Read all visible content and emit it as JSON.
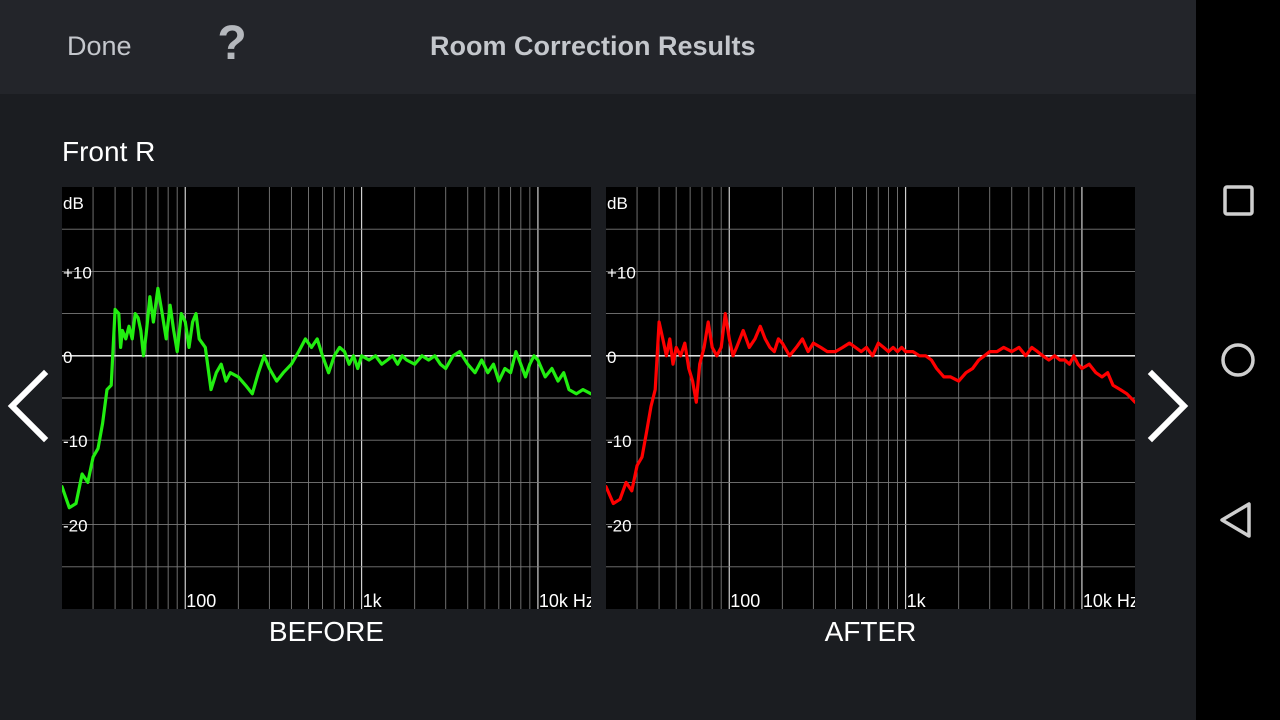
{
  "topbar": {
    "done_label": "Done",
    "help_label": "?",
    "title": "Room Correction Results"
  },
  "channel": {
    "label": "Front R"
  },
  "icons": {
    "prev": "chevron-left-icon",
    "next": "chevron-right-icon",
    "recent": "square-recent-apps-icon",
    "home": "circle-home-icon",
    "back": "triangle-back-icon"
  },
  "colors": {
    "before_curve": "#22ee11",
    "after_curve": "#ff0000",
    "grid": "#7a7a7a",
    "zero_line": "#ffffff"
  },
  "chart_data": [
    {
      "type": "line",
      "caption": "BEFORE",
      "ylabel": "dB",
      "y_ticks": [
        "+10",
        "0",
        "-10",
        "-20"
      ],
      "x_ticks": [
        "100",
        "1k",
        "10k Hz"
      ],
      "xscale": "log",
      "xlim": [
        20,
        20000
      ],
      "ylim": [
        -30,
        20
      ],
      "grid": true,
      "series": [
        {
          "color": "#22ee11",
          "x": [
            20,
            22,
            24,
            26,
            28,
            30,
            32,
            34,
            36,
            38,
            40,
            42,
            43,
            44,
            46,
            48,
            50,
            52,
            54,
            56,
            58,
            60,
            63,
            66,
            70,
            74,
            78,
            82,
            86,
            90,
            95,
            100,
            105,
            110,
            115,
            120,
            130,
            140,
            150,
            160,
            170,
            180,
            200,
            220,
            240,
            260,
            280,
            300,
            330,
            360,
            400,
            440,
            480,
            520,
            560,
            600,
            650,
            700,
            750,
            800,
            850,
            900,
            950,
            1000,
            1100,
            1200,
            1300,
            1400,
            1500,
            1600,
            1700,
            1800,
            2000,
            2200,
            2400,
            2600,
            2800,
            3000,
            3300,
            3600,
            4000,
            4400,
            4800,
            5200,
            5600,
            6000,
            6500,
            7000,
            7500,
            8000,
            8500,
            9000,
            9500,
            10000,
            11000,
            12000,
            13000,
            14000,
            15000,
            16500,
            18000,
            20000
          ],
          "y": [
            -15.5,
            -18,
            -17.5,
            -14,
            -15,
            -12,
            -11,
            -8,
            -4,
            -3.5,
            5.5,
            5,
            1,
            3,
            2,
            3.5,
            2,
            5,
            4.5,
            3,
            0,
            2.5,
            7,
            4,
            8,
            5,
            2,
            6,
            3,
            0.5,
            5,
            4,
            1,
            4,
            5,
            2,
            1,
            -4,
            -2,
            -1,
            -3,
            -2,
            -2.5,
            -3.5,
            -4.5,
            -2,
            0,
            -1.5,
            -3,
            -2,
            -1,
            0.5,
            2,
            1,
            2,
            0,
            -2,
            0,
            1,
            0.5,
            -1,
            0,
            -1.5,
            0,
            -0.5,
            0,
            -1,
            -0.5,
            0,
            -1,
            0,
            -0.5,
            -1,
            0,
            -0.5,
            0,
            -1,
            -1.5,
            0,
            0.5,
            -1,
            -2,
            -0.5,
            -2,
            -1,
            -3,
            -1.5,
            -2,
            0.5,
            -1,
            -2.5,
            -1,
            0,
            -0.5,
            -2.5,
            -1.5,
            -3,
            -2,
            -4,
            -4.5,
            -4,
            -4.5
          ]
        }
      ]
    },
    {
      "type": "line",
      "caption": "AFTER",
      "ylabel": "dB",
      "y_ticks": [
        "+10",
        "0",
        "-10",
        "-20"
      ],
      "x_ticks": [
        "100",
        "1k",
        "10k Hz"
      ],
      "xscale": "log",
      "xlim": [
        20,
        20000
      ],
      "ylim": [
        -30,
        20
      ],
      "grid": true,
      "series": [
        {
          "color": "#ff0000",
          "x": [
            20,
            22,
            24,
            26,
            28,
            30,
            32,
            34,
            36,
            38,
            40,
            42,
            44,
            46,
            48,
            50,
            53,
            56,
            59,
            62,
            65,
            68,
            72,
            76,
            80,
            85,
            90,
            95,
            100,
            105,
            110,
            120,
            130,
            140,
            150,
            160,
            170,
            180,
            190,
            200,
            220,
            240,
            260,
            280,
            300,
            330,
            360,
            400,
            440,
            480,
            520,
            560,
            600,
            650,
            700,
            750,
            800,
            850,
            900,
            950,
            1000,
            1100,
            1200,
            1300,
            1400,
            1500,
            1650,
            1800,
            2000,
            2200,
            2400,
            2600,
            2800,
            3000,
            3300,
            3600,
            4000,
            4400,
            4800,
            5200,
            5600,
            6000,
            6500,
            7000,
            7500,
            8000,
            8500,
            9000,
            9500,
            10000,
            11000,
            12000,
            13000,
            14000,
            15000,
            16500,
            18000,
            20000
          ],
          "y": [
            -15.5,
            -17.5,
            -17,
            -15,
            -16,
            -13,
            -12,
            -9,
            -6,
            -4,
            4,
            2,
            0,
            2,
            -1,
            1,
            0,
            1.5,
            -1.5,
            -3,
            -5.5,
            -1,
            1,
            4,
            1,
            0,
            1,
            5,
            2,
            0,
            1,
            3,
            1,
            2,
            3.5,
            2,
            1,
            0.5,
            2,
            1.5,
            0,
            1,
            2,
            0.5,
            1.5,
            1,
            0.5,
            0.5,
            1,
            1.5,
            1,
            0.5,
            1,
            0,
            1.5,
            1,
            0.5,
            1,
            0.5,
            1,
            0.5,
            0.5,
            0,
            0,
            -0.5,
            -1.5,
            -2.5,
            -2.5,
            -3,
            -2,
            -1.5,
            -0.5,
            0,
            0.5,
            0.5,
            1,
            0.5,
            1,
            0,
            1,
            0.5,
            0,
            -0.5,
            0,
            -0.5,
            -0.5,
            -1,
            0,
            -1,
            -1.5,
            -1,
            -2,
            -2.5,
            -2,
            -3.5,
            -4,
            -4.5,
            -5.5
          ]
        }
      ]
    }
  ]
}
